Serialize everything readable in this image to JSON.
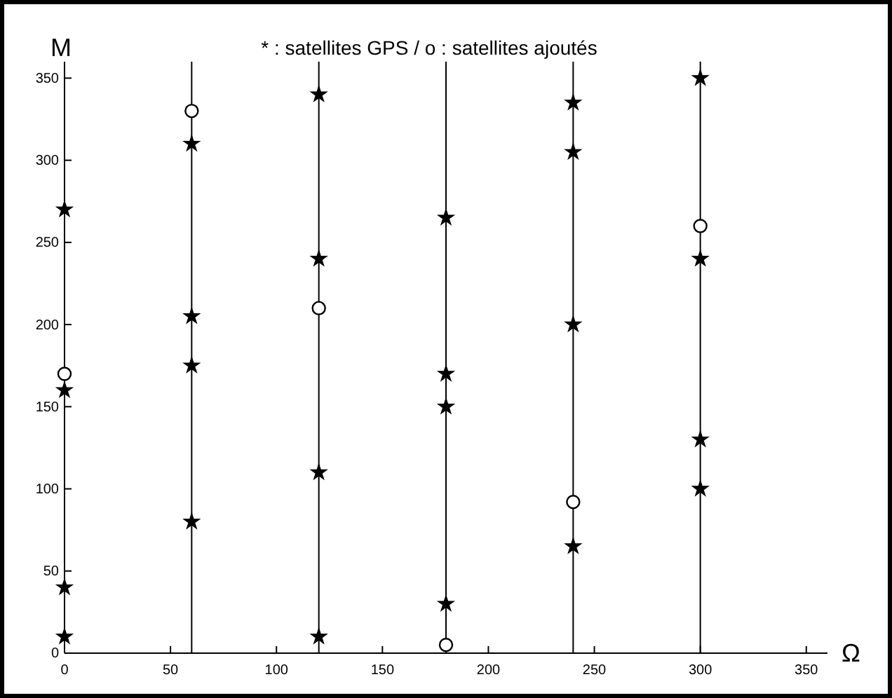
{
  "chart_data": {
    "type": "scatter",
    "title": "* : satellites GPS  /  o : satellites ajoutés",
    "xlabel": "Ω",
    "ylabel": "M",
    "xlim": [
      0,
      360
    ],
    "ylim": [
      0,
      360
    ],
    "xticks": [
      0,
      50,
      100,
      150,
      200,
      250,
      300,
      350
    ],
    "yticks": [
      0,
      50,
      100,
      150,
      200,
      250,
      300,
      350
    ],
    "grid": false,
    "ref_lines": [
      {
        "axis": "x",
        "value": 60,
        "color": "#000000"
      },
      {
        "axis": "x",
        "value": 120,
        "color": "#000000"
      },
      {
        "axis": "x",
        "value": 180,
        "color": "#000000"
      },
      {
        "axis": "x",
        "value": 240,
        "color": "#000000"
      },
      {
        "axis": "x",
        "value": 300,
        "color": "#000000"
      }
    ],
    "series": [
      {
        "color": "#000000",
        "marker": "star",
        "x": [
          0,
          0,
          0,
          0,
          60,
          60,
          60,
          60,
          120,
          120,
          120,
          120,
          180,
          180,
          180,
          180,
          240,
          240,
          240,
          240,
          300,
          300,
          300,
          300
        ],
        "values": [
          270,
          160,
          40,
          10,
          310,
          205,
          175,
          80,
          340,
          240,
          110,
          10,
          265,
          170,
          150,
          30,
          335,
          305,
          200,
          65,
          350,
          240,
          130,
          100
        ]
      },
      {
        "color": "#000000",
        "marker": "circle",
        "x": [
          0,
          60,
          120,
          180,
          240,
          300
        ],
        "values": [
          170,
          330,
          210,
          5,
          92,
          260
        ]
      }
    ]
  }
}
